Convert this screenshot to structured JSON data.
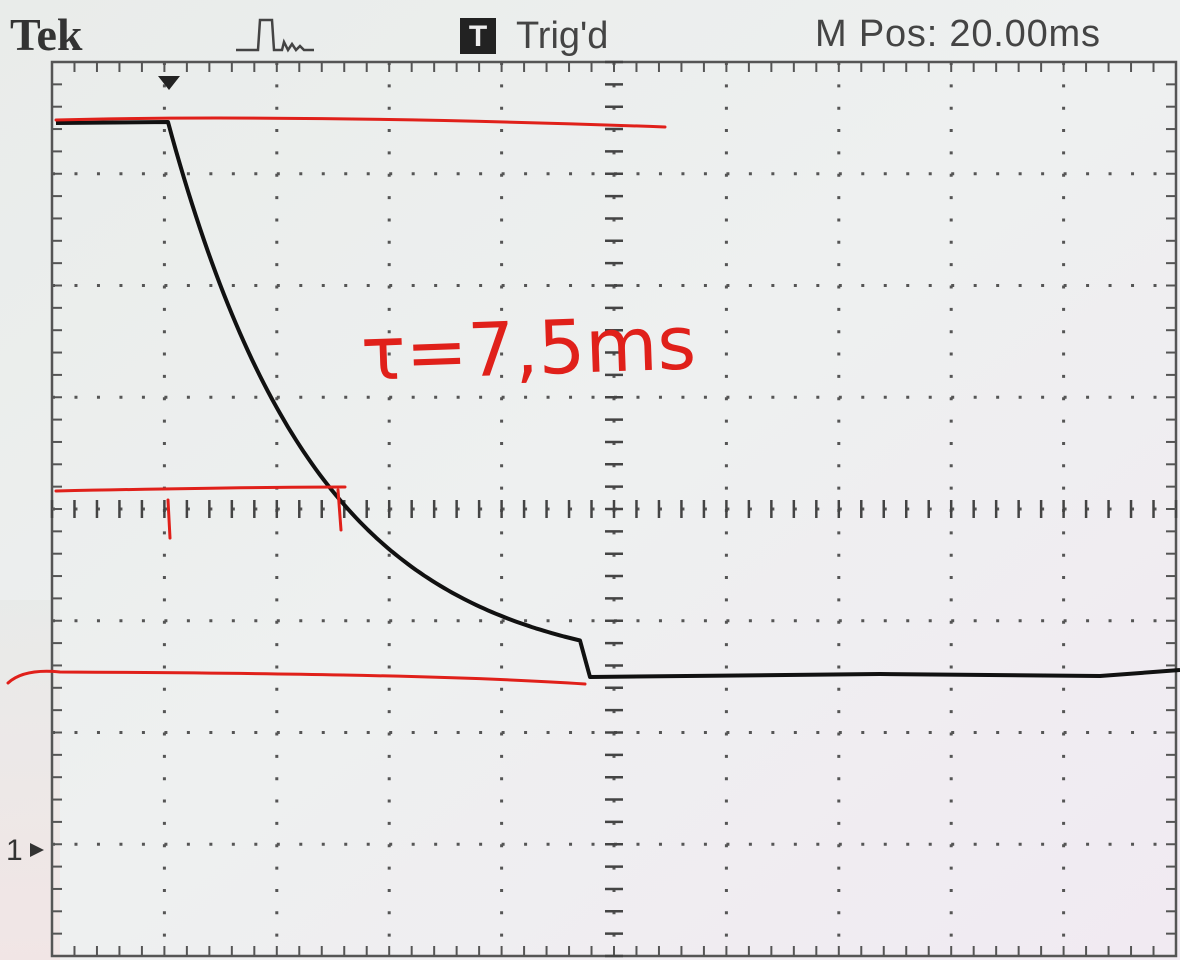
{
  "header": {
    "brand": "Tek",
    "trigger_icon": "T",
    "trigger_status": "Trig'd",
    "position": "M Pos: 20.00ms"
  },
  "channel_marker": "1",
  "annotation": "τ=7,5ms"
}
